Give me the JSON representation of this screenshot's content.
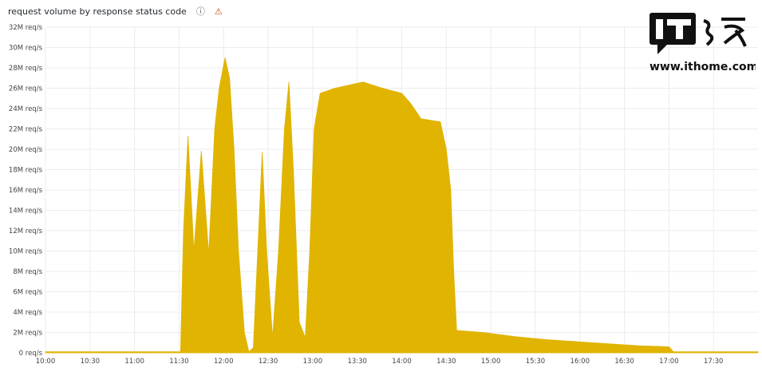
{
  "panel": {
    "title": "request volume by response status code",
    "info_icon": "info-circle-icon",
    "warning_icon": "warning-triangle-icon"
  },
  "watermark": {
    "text": "IT之家",
    "url_text": "www.ithome.com"
  },
  "chart_data": {
    "type": "area",
    "title": "request volume by response status code",
    "xlabel": "",
    "ylabel": "",
    "color": "#e0b400",
    "grid": true,
    "legend": "none",
    "xlim": [
      "10:00",
      "18:00"
    ],
    "ylim": [
      0,
      32
    ],
    "y_unit": "M req/s",
    "y_ticks": [
      "0 req/s",
      "2M req/s",
      "4M req/s",
      "6M req/s",
      "8M req/s",
      "10M req/s",
      "12M req/s",
      "14M req/s",
      "16M req/s",
      "18M req/s",
      "20M req/s",
      "22M req/s",
      "24M req/s",
      "26M req/s",
      "28M req/s",
      "30M req/s",
      "32M req/s"
    ],
    "x_ticks": [
      "10:00",
      "10:30",
      "11:00",
      "11:30",
      "12:00",
      "12:30",
      "13:00",
      "13:30",
      "14:00",
      "14:30",
      "15:00",
      "15:30",
      "16:00",
      "16:30",
      "17:00",
      "17:30"
    ],
    "points": [
      [
        "10:00",
        0.1
      ],
      [
        "11:31",
        0.1
      ],
      [
        "11:33",
        12
      ],
      [
        "11:36",
        21.3
      ],
      [
        "11:40",
        10
      ],
      [
        "11:45",
        19.8
      ],
      [
        "11:50",
        9.7
      ],
      [
        "11:54",
        22
      ],
      [
        "11:57",
        26
      ],
      [
        "12:01",
        29
      ],
      [
        "12:04",
        27
      ],
      [
        "12:07",
        20
      ],
      [
        "12:10",
        10
      ],
      [
        "12:14",
        2
      ],
      [
        "12:17",
        0.1
      ],
      [
        "12:20",
        0.5
      ],
      [
        "12:23",
        10
      ],
      [
        "12:26",
        19.7
      ],
      [
        "12:29",
        10
      ],
      [
        "12:33",
        1.5
      ],
      [
        "12:37",
        10
      ],
      [
        "12:41",
        22
      ],
      [
        "12:44",
        26.6
      ],
      [
        "12:47",
        18
      ],
      [
        "12:51",
        3
      ],
      [
        "12:55",
        1.5
      ],
      [
        "12:58",
        10
      ],
      [
        "13:01",
        22
      ],
      [
        "13:05",
        25.5
      ],
      [
        "13:15",
        26
      ],
      [
        "13:34",
        26.6
      ],
      [
        "13:47",
        26
      ],
      [
        "14:00",
        25.5
      ],
      [
        "14:06",
        24.5
      ],
      [
        "14:13",
        23
      ],
      [
        "14:26",
        22.7
      ],
      [
        "14:30",
        20
      ],
      [
        "14:33",
        16
      ],
      [
        "14:35",
        8
      ],
      [
        "14:37",
        2.2
      ],
      [
        "14:55",
        2.0
      ],
      [
        "15:16",
        1.6
      ],
      [
        "15:37",
        1.3
      ],
      [
        "16:08",
        1.0
      ],
      [
        "16:40",
        0.7
      ],
      [
        "17:00",
        0.6
      ],
      [
        "17:03",
        0.1
      ],
      [
        "18:00",
        0.1
      ]
    ]
  }
}
